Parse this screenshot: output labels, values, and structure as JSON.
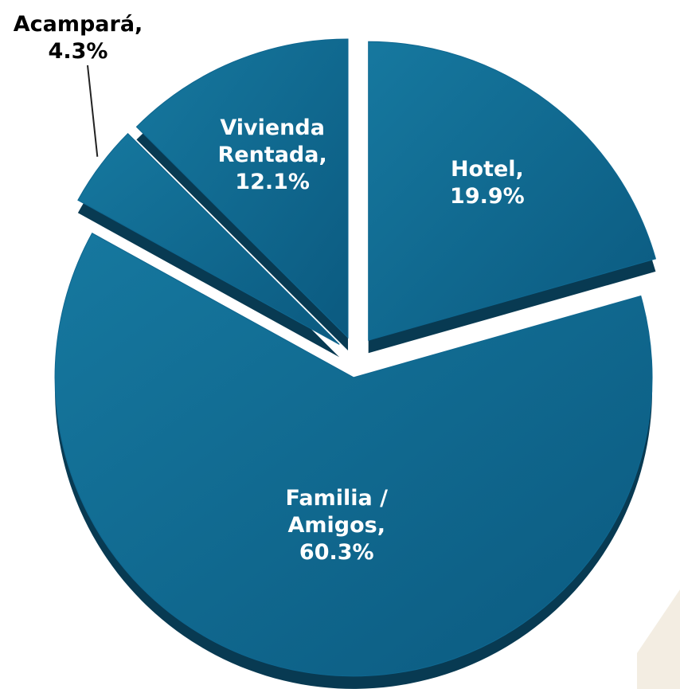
{
  "chart_data": {
    "type": "pie",
    "categories": [
      "Hotel,",
      "Familia / Amigos,",
      "Acampará,",
      "Vivienda Rentada,"
    ],
    "values": [
      19.9,
      60.3,
      4.3,
      12.1
    ],
    "value_labels": [
      "19.9%",
      "60.3%",
      "4.3%",
      "12.1%"
    ],
    "color": "#0f6790"
  }
}
